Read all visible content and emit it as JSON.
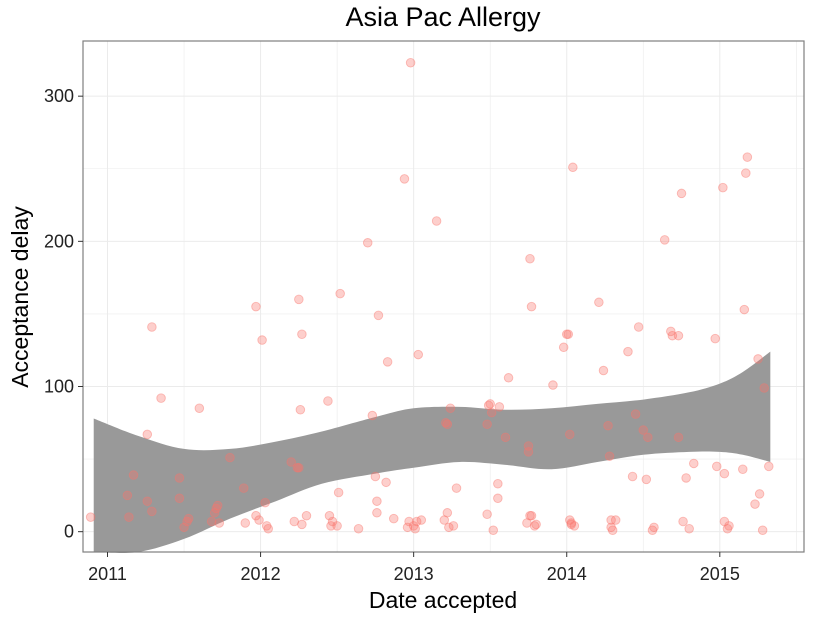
{
  "chart_data": {
    "type": "scatter",
    "title": "Asia Pac Allergy",
    "xlabel": "Date accepted",
    "ylabel": "Acceptance delay",
    "x_unit": "year",
    "xlim": [
      2010.84,
      2015.55
    ],
    "ylim": [
      -14,
      338
    ],
    "x_ticks": [
      2011,
      2012,
      2013,
      2014,
      2015
    ],
    "x_tick_labels": [
      "2011",
      "2012",
      "2013",
      "2014",
      "2015"
    ],
    "y_ticks": [
      0,
      100,
      200,
      300
    ],
    "y_tick_labels": [
      "0",
      "100",
      "200",
      "300"
    ],
    "grid": true,
    "legend": "none",
    "colors": {
      "points": "#f8766d",
      "band": "#999999",
      "panel_border": "#7f7f7f",
      "grid": "#ebebeb"
    },
    "smooth_band": {
      "x": [
        2010.91,
        2011.2,
        2011.5,
        2011.8,
        2012.1,
        2012.4,
        2012.75,
        2013.0,
        2013.3,
        2013.6,
        2013.9,
        2014.2,
        2014.5,
        2014.8,
        2015.0,
        2015.15,
        2015.33
      ],
      "upper": [
        78,
        66,
        57,
        57,
        62,
        69,
        79,
        85,
        86,
        84,
        85,
        88,
        91,
        96,
        102,
        110,
        124
      ],
      "lower": [
        -14,
        -14,
        -5,
        9,
        21,
        33,
        40,
        44,
        48,
        46,
        43,
        48,
        53,
        55,
        55,
        53,
        48
      ]
    },
    "series": [
      {
        "points": [
          [
            2010.89,
            10
          ],
          [
            2011.13,
            25
          ],
          [
            2011.14,
            10
          ],
          [
            2011.17,
            39
          ],
          [
            2011.26,
            67
          ],
          [
            2011.26,
            21
          ],
          [
            2011.29,
            141
          ],
          [
            2011.29,
            14
          ],
          [
            2011.35,
            92
          ],
          [
            2011.47,
            37
          ],
          [
            2011.47,
            23
          ],
          [
            2011.5,
            3
          ],
          [
            2011.52,
            7
          ],
          [
            2011.53,
            9
          ],
          [
            2011.6,
            85
          ],
          [
            2011.68,
            7
          ],
          [
            2011.7,
            13
          ],
          [
            2011.71,
            16
          ],
          [
            2011.72,
            18
          ],
          [
            2011.73,
            6
          ],
          [
            2011.8,
            51
          ],
          [
            2011.89,
            30
          ],
          [
            2011.9,
            6
          ],
          [
            2011.97,
            11
          ],
          [
            2011.97,
            155
          ],
          [
            2011.99,
            8
          ],
          [
            2012.01,
            132
          ],
          [
            2012.03,
            20
          ],
          [
            2012.04,
            4
          ],
          [
            2012.05,
            2
          ],
          [
            2012.2,
            48
          ],
          [
            2012.22,
            7
          ],
          [
            2012.24,
            44
          ],
          [
            2012.25,
            44
          ],
          [
            2012.25,
            160
          ],
          [
            2012.26,
            84
          ],
          [
            2012.27,
            136
          ],
          [
            2012.27,
            5
          ],
          [
            2012.3,
            11
          ],
          [
            2012.44,
            90
          ],
          [
            2012.45,
            11
          ],
          [
            2012.46,
            4
          ],
          [
            2012.47,
            7
          ],
          [
            2012.5,
            4
          ],
          [
            2012.51,
            27
          ],
          [
            2012.52,
            164
          ],
          [
            2012.64,
            2
          ],
          [
            2012.7,
            199
          ],
          [
            2012.73,
            80
          ],
          [
            2012.75,
            38
          ],
          [
            2012.76,
            21
          ],
          [
            2012.76,
            13
          ],
          [
            2012.77,
            149
          ],
          [
            2012.82,
            34
          ],
          [
            2012.83,
            117
          ],
          [
            2012.87,
            9
          ],
          [
            2012.94,
            243
          ],
          [
            2012.96,
            3
          ],
          [
            2012.97,
            7
          ],
          [
            2012.98,
            323
          ],
          [
            2013.0,
            4
          ],
          [
            2013.01,
            2
          ],
          [
            2013.02,
            7
          ],
          [
            2013.03,
            122
          ],
          [
            2013.05,
            8
          ],
          [
            2013.15,
            214
          ],
          [
            2013.2,
            8
          ],
          [
            2013.21,
            75
          ],
          [
            2013.22,
            74
          ],
          [
            2013.22,
            13
          ],
          [
            2013.23,
            3
          ],
          [
            2013.24,
            85
          ],
          [
            2013.26,
            4
          ],
          [
            2013.28,
            30
          ],
          [
            2013.48,
            74
          ],
          [
            2013.48,
            12
          ],
          [
            2013.49,
            87
          ],
          [
            2013.5,
            88
          ],
          [
            2013.51,
            82
          ],
          [
            2013.52,
            1
          ],
          [
            2013.55,
            23
          ],
          [
            2013.55,
            33
          ],
          [
            2013.56,
            86
          ],
          [
            2013.6,
            65
          ],
          [
            2013.62,
            106
          ],
          [
            2013.74,
            6
          ],
          [
            2013.75,
            59
          ],
          [
            2013.75,
            55
          ],
          [
            2013.76,
            188
          ],
          [
            2013.76,
            11
          ],
          [
            2013.77,
            11
          ],
          [
            2013.77,
            155
          ],
          [
            2013.79,
            4
          ],
          [
            2013.8,
            5
          ],
          [
            2013.91,
            101
          ],
          [
            2013.98,
            127
          ],
          [
            2014.0,
            136
          ],
          [
            2014.01,
            136
          ],
          [
            2014.02,
            67
          ],
          [
            2014.02,
            8
          ],
          [
            2014.03,
            5
          ],
          [
            2014.03,
            6
          ],
          [
            2014.04,
            251
          ],
          [
            2014.05,
            4
          ],
          [
            2014.21,
            158
          ],
          [
            2014.24,
            111
          ],
          [
            2014.27,
            73
          ],
          [
            2014.28,
            52
          ],
          [
            2014.29,
            8
          ],
          [
            2014.29,
            3
          ],
          [
            2014.3,
            1
          ],
          [
            2014.32,
            8
          ],
          [
            2014.4,
            124
          ],
          [
            2014.43,
            38
          ],
          [
            2014.45,
            81
          ],
          [
            2014.47,
            141
          ],
          [
            2014.5,
            70
          ],
          [
            2014.52,
            36
          ],
          [
            2014.53,
            65
          ],
          [
            2014.56,
            1
          ],
          [
            2014.57,
            3
          ],
          [
            2014.64,
            201
          ],
          [
            2014.68,
            138
          ],
          [
            2014.69,
            135
          ],
          [
            2014.73,
            135
          ],
          [
            2014.73,
            65
          ],
          [
            2014.75,
            233
          ],
          [
            2014.76,
            7
          ],
          [
            2014.78,
            37
          ],
          [
            2014.8,
            2
          ],
          [
            2014.83,
            47
          ],
          [
            2014.97,
            133
          ],
          [
            2014.98,
            45
          ],
          [
            2015.02,
            237
          ],
          [
            2015.03,
            7
          ],
          [
            2015.03,
            40
          ],
          [
            2015.05,
            2
          ],
          [
            2015.06,
            4
          ],
          [
            2015.15,
            43
          ],
          [
            2015.16,
            153
          ],
          [
            2015.17,
            247
          ],
          [
            2015.18,
            258
          ],
          [
            2015.23,
            19
          ],
          [
            2015.25,
            119
          ],
          [
            2015.26,
            26
          ],
          [
            2015.28,
            1
          ],
          [
            2015.29,
            99
          ],
          [
            2015.32,
            45
          ]
        ]
      }
    ]
  }
}
